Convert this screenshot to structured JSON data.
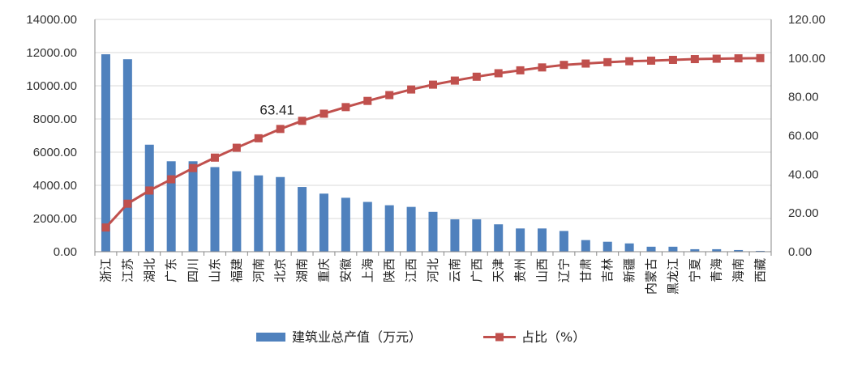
{
  "chart_data": {
    "type": "bar",
    "categories": [
      "浙江",
      "江苏",
      "湖北",
      "广东",
      "四川",
      "山东",
      "福建",
      "河南",
      "北京",
      "湖南",
      "重庆",
      "安徽",
      "上海",
      "陕西",
      "江西",
      "河北",
      "云南",
      "广西",
      "天津",
      "贵州",
      "山西",
      "辽宁",
      "甘肃",
      "吉林",
      "新疆",
      "内蒙古",
      "黑龙江",
      "宁夏",
      "青海",
      "海南",
      "西藏"
    ],
    "series": [
      {
        "name": "建筑业总产值（万元）",
        "type": "bar",
        "axis": "left",
        "color": "#4F81BD",
        "values": [
          11900,
          11600,
          6450,
          5450,
          5450,
          5100,
          4850,
          4600,
          4500,
          3900,
          3500,
          3250,
          3000,
          2800,
          2700,
          2400,
          1950,
          1950,
          1650,
          1400,
          1400,
          1250,
          700,
          600,
          500,
          300,
          300,
          150,
          150,
          100,
          50
        ]
      },
      {
        "name": "占比（%）",
        "type": "line",
        "axis": "right",
        "color": "#C0504D",
        "values": [
          12.5,
          24.8,
          31.6,
          37.4,
          43.2,
          48.6,
          53.7,
          58.6,
          63.41,
          67.6,
          71.3,
          74.7,
          77.9,
          80.9,
          83.8,
          86.3,
          88.4,
          90.4,
          92.2,
          93.7,
          95.2,
          96.5,
          97.2,
          97.9,
          98.4,
          98.7,
          99.1,
          99.5,
          99.7,
          99.9,
          100
        ]
      }
    ],
    "y_left": {
      "min": 0,
      "max": 14000,
      "step": 2000,
      "tick_labels": [
        "0.00",
        "2000.00",
        "4000.00",
        "6000.00",
        "8000.00",
        "10000.00",
        "12000.00",
        "14000.00"
      ]
    },
    "y_right": {
      "min": 0,
      "max": 120,
      "step": 20,
      "tick_labels": [
        "0.00",
        "20.00",
        "40.00",
        "60.00",
        "80.00",
        "100.00",
        "120.00"
      ]
    },
    "annotation": {
      "series_index": 1,
      "category_index": 8,
      "text": "63.41"
    },
    "grid": true,
    "legend_position": "bottom"
  }
}
